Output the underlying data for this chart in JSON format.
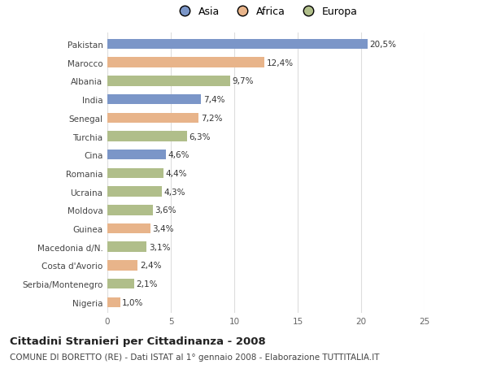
{
  "categories": [
    "Pakistan",
    "Marocco",
    "Albania",
    "India",
    "Senegal",
    "Turchia",
    "Cina",
    "Romania",
    "Ucraina",
    "Moldova",
    "Guinea",
    "Macedonia d/N.",
    "Costa d'Avorio",
    "Serbia/Montenegro",
    "Nigeria"
  ],
  "values": [
    20.5,
    12.4,
    9.7,
    7.4,
    7.2,
    6.3,
    4.6,
    4.4,
    4.3,
    3.6,
    3.4,
    3.1,
    2.4,
    2.1,
    1.0
  ],
  "labels": [
    "20,5%",
    "12,4%",
    "9,7%",
    "7,4%",
    "7,2%",
    "6,3%",
    "4,6%",
    "4,4%",
    "4,3%",
    "3,6%",
    "3,4%",
    "3,1%",
    "2,4%",
    "2,1%",
    "1,0%"
  ],
  "regions": [
    "Asia",
    "Africa",
    "Europa",
    "Asia",
    "Africa",
    "Europa",
    "Asia",
    "Europa",
    "Europa",
    "Europa",
    "Africa",
    "Europa",
    "Africa",
    "Europa",
    "Africa"
  ],
  "colors": {
    "Asia": "#7b96c8",
    "Africa": "#e8b48a",
    "Europa": "#b0be8a"
  },
  "xlim": [
    0,
    25
  ],
  "xticks": [
    0,
    5,
    10,
    15,
    20,
    25
  ],
  "title": "Cittadini Stranieri per Cittadinanza - 2008",
  "subtitle": "COMUNE DI BORETTO (RE) - Dati ISTAT al 1° gennaio 2008 - Elaborazione TUTTITALIA.IT",
  "background_color": "#ffffff",
  "plot_bg_color": "#ffffff",
  "grid_color": "#dddddd",
  "title_fontsize": 9.5,
  "subtitle_fontsize": 7.5,
  "label_fontsize": 7.5,
  "tick_fontsize": 7.5,
  "legend_fontsize": 9,
  "bar_height": 0.55
}
